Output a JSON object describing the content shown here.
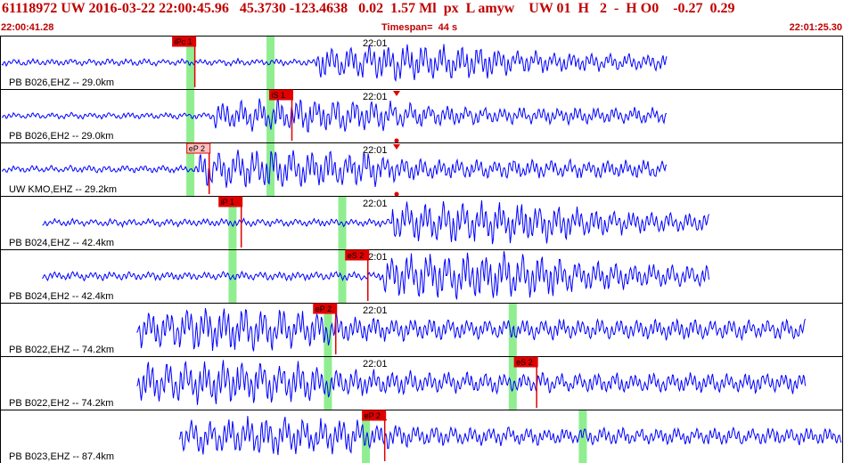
{
  "header": {
    "title": "61118972 UW 2016-03-22 22:00:45.96   45.3730 -123.4638   0.02  1.57 Ml  px  L amyw    UW 01  H   2  -  H O0    -0.27  0.29",
    "start_time": "22:00:41.28",
    "timespan_label": "Timespan=  44 s",
    "end_time": "22:01:25.30"
  },
  "colors": {
    "trace": "#0000ff",
    "pick_box": "#e00000",
    "pick_box_soft": "#ffc0c0",
    "highlight": "#90ee90",
    "header_text": "#c00000",
    "panel_border": "#000000"
  },
  "panels": [
    {
      "label": "PB B026,EHZ -- 29.0km",
      "minute_label": "22:01",
      "pick": "iPc 1",
      "pick_style": "solid",
      "green_bands": [
        0.225,
        0.32
      ],
      "trace_start": 0.0,
      "trace_end": 0.79,
      "amp": 0.35,
      "arrival": 0.37,
      "seed": 3,
      "markers": false
    },
    {
      "label": "PB B026,EH2 -- 29.0km",
      "minute_label": "22:01",
      "pick": "iS 1",
      "pick_style": "solid",
      "green_bands": [
        0.225,
        0.32
      ],
      "trace_start": 0.0,
      "trace_end": 0.79,
      "amp": 0.33,
      "arrival": 0.25,
      "seed": 7,
      "markers": true
    },
    {
      "label": "UW KMO,EHZ -- 29.2km",
      "minute_label": "22:01",
      "pick": "eP 2",
      "pick_style": "soft",
      "green_bands": [
        0.225,
        0.32
      ],
      "trace_start": 0.0,
      "trace_end": 0.79,
      "amp": 0.38,
      "arrival": 0.23,
      "seed": 11,
      "markers": true
    },
    {
      "label": "PB B024,EHZ -- 42.4km",
      "minute_label": "22:01",
      "pick": "iP 1",
      "pick_style": "solid",
      "green_bands": [
        0.275,
        0.405
      ],
      "trace_start": 0.048,
      "trace_end": 0.84,
      "amp": 0.4,
      "arrival": 0.46,
      "seed": 13,
      "markers": false
    },
    {
      "label": "PB B024,EH2 -- 42.4km",
      "minute_label": "22:01",
      "pick": "eS 2",
      "pick_style": "solid",
      "green_bands": [
        0.275,
        0.405
      ],
      "trace_start": 0.048,
      "trace_end": 0.84,
      "amp": 0.45,
      "arrival": 0.45,
      "seed": 17,
      "markers": true
    },
    {
      "label": "PB B022,EHZ -- 74.2km",
      "minute_label": "22:01",
      "pick": "eP 2",
      "pick_style": "solid",
      "green_bands": [
        0.388,
        0.607
      ],
      "trace_start": 0.16,
      "trace_end": 0.955,
      "amp": 0.42,
      "arrival": 0.16,
      "seed": 19,
      "markers": false
    },
    {
      "label": "PB B022,EH2 -- 74.2km",
      "minute_label": "22:01",
      "pick": "eS 2",
      "pick_style": "solid",
      "green_bands": [
        0.388,
        0.607
      ],
      "trace_start": 0.16,
      "trace_end": 0.955,
      "amp": 0.42,
      "arrival": 0.16,
      "seed": 23,
      "markers": false
    },
    {
      "label": "PB B023,EHZ -- 87.4km",
      "minute_label": "22:01",
      "pick": "eP 2",
      "pick_style": "solid",
      "green_bands": [
        0.433,
        0.69
      ],
      "trace_start": 0.21,
      "trace_end": 1.0,
      "amp": 0.36,
      "arrival": 0.21,
      "seed": 29,
      "markers": false
    }
  ]
}
